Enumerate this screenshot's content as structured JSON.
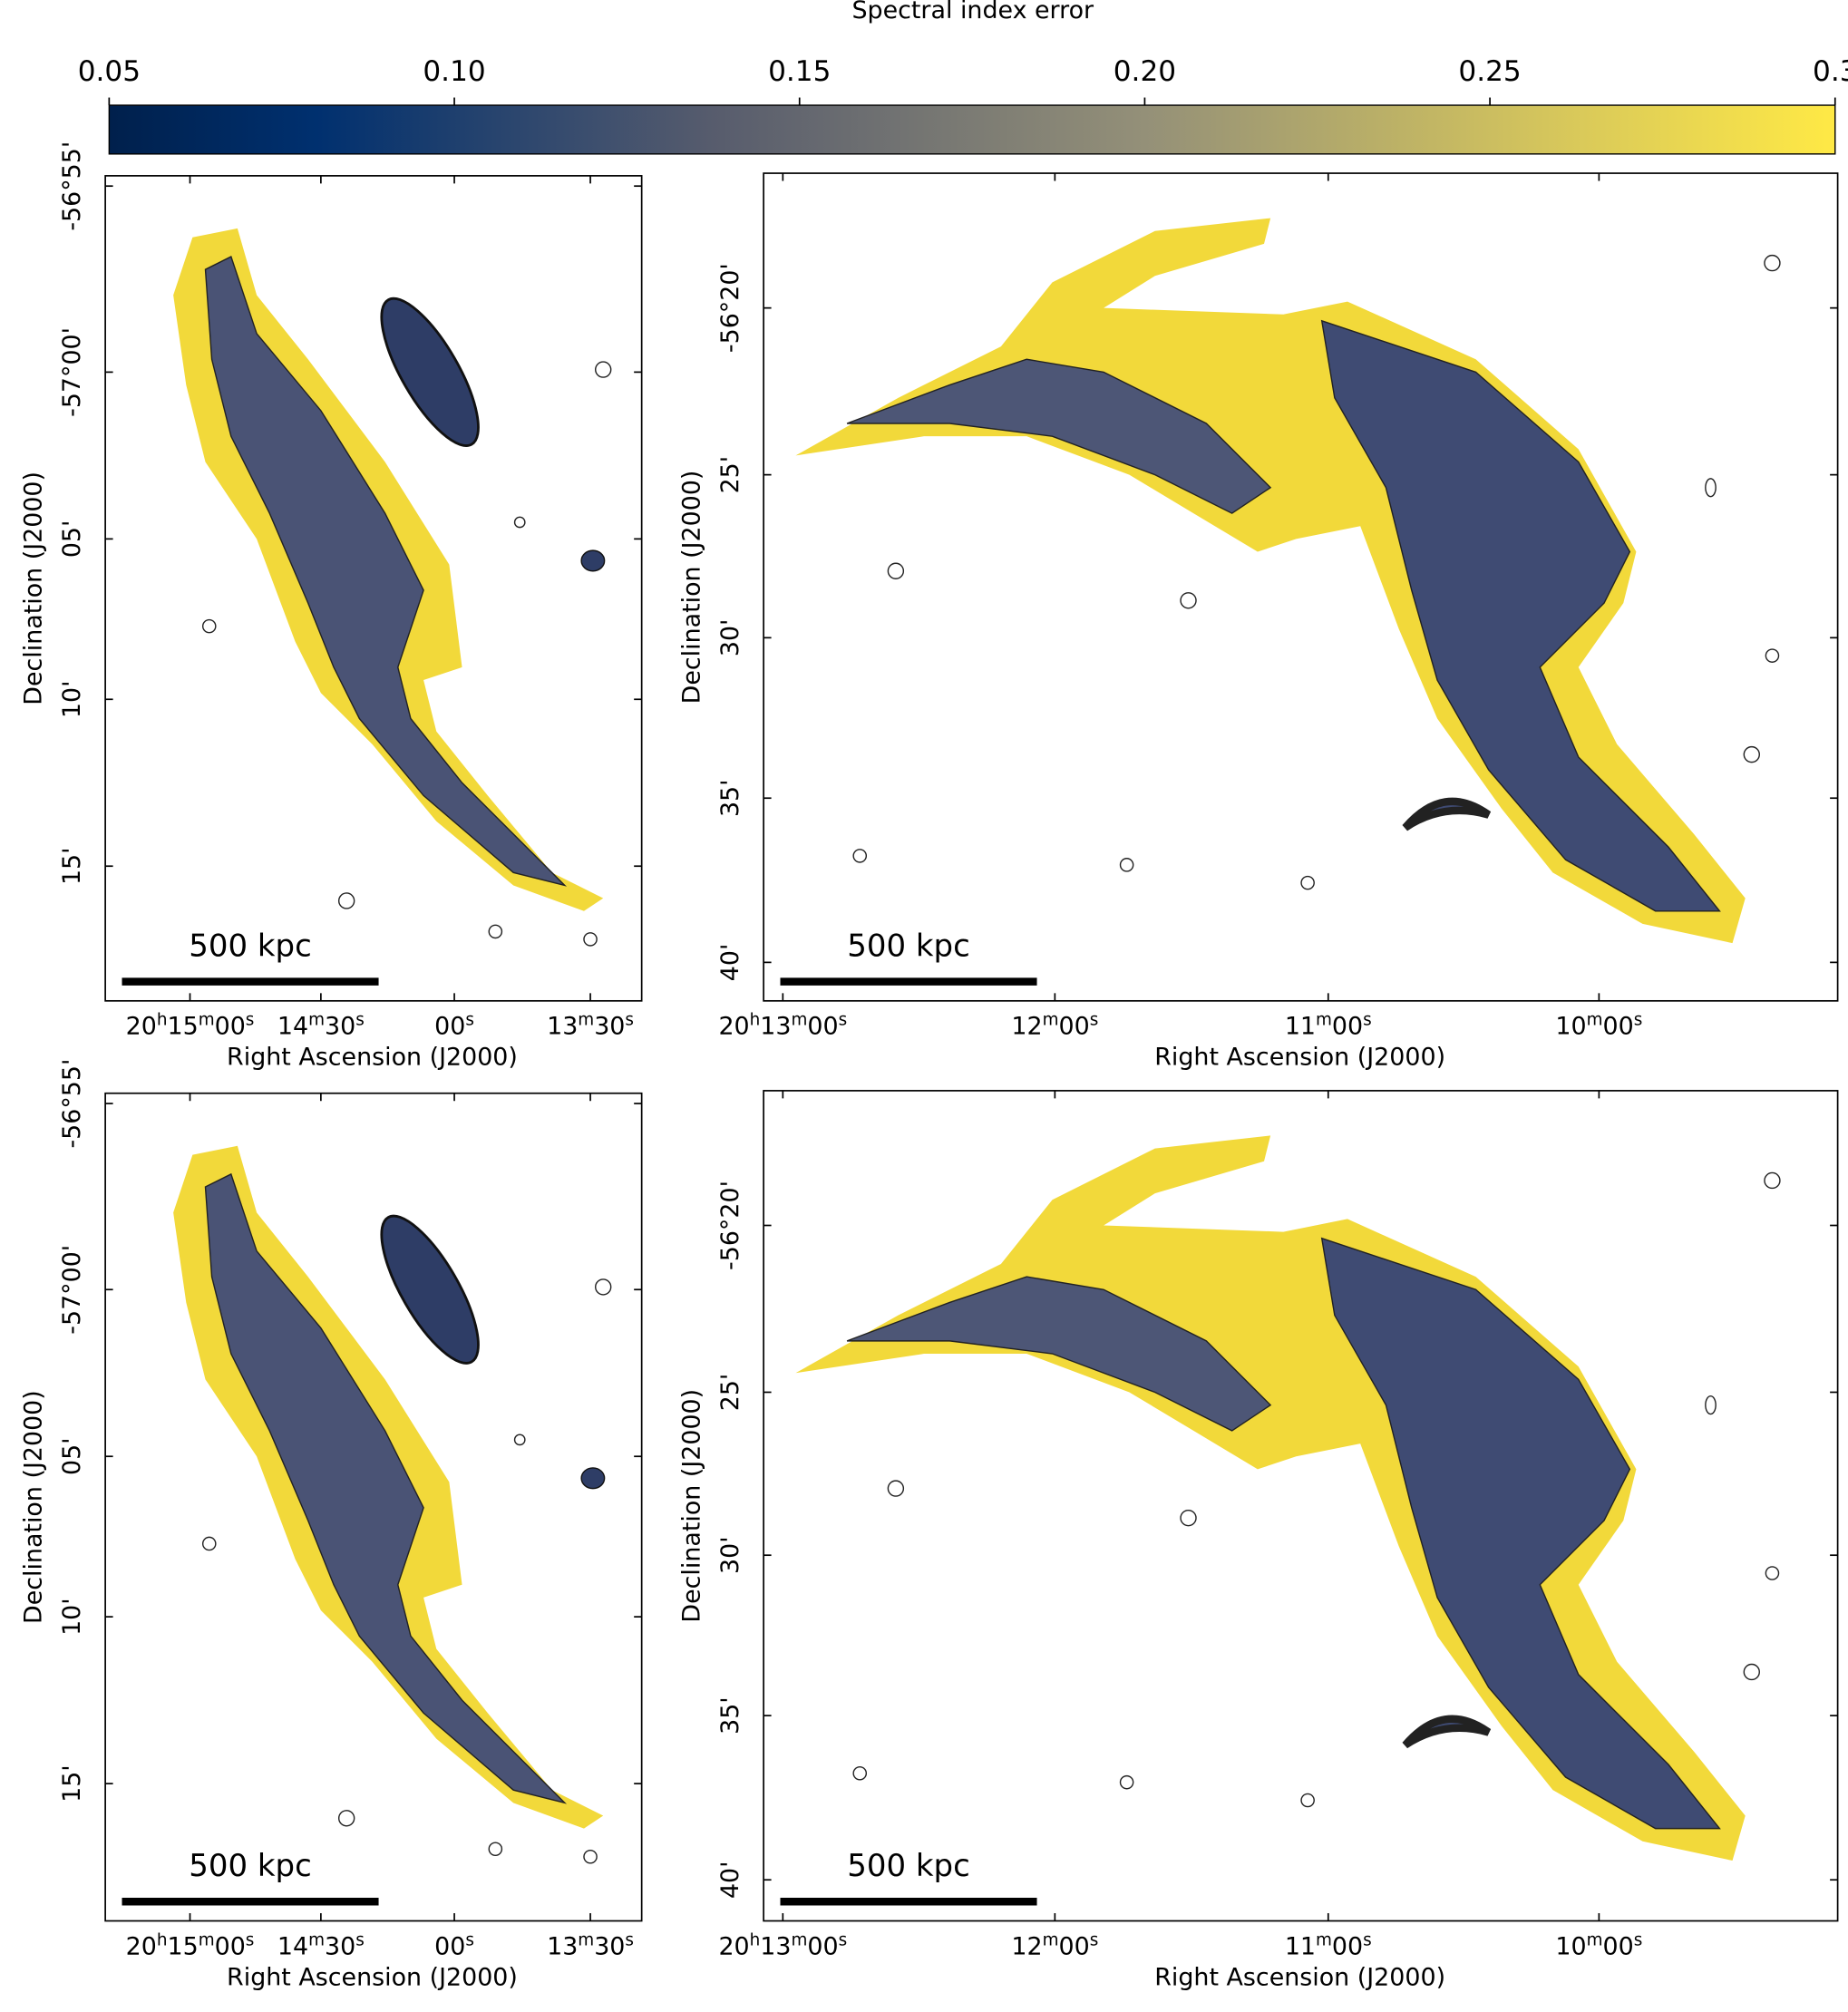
{
  "colorbar": {
    "title": "Spectral index error",
    "lim": [
      0.05,
      0.3
    ],
    "ticks": [
      0.05,
      {
        "value": 0.1,
        "label": "0.10"
      },
      {
        "value": 0.15,
        "label": "0.15"
      },
      {
        "value": 0.2,
        "label": "0.20"
      },
      {
        "value": 0.25,
        "label": "0.25"
      },
      0.3
    ]
  },
  "panels": [
    {
      "ylabel": "Declination (J2000)",
      "xlabel": "Right Ascension (J2000)",
      "scalebar": "500 kpc",
      "dec_ticks": [
        "-56°55'",
        "-57°00'",
        "05'",
        "10'",
        "15'"
      ],
      "ra_ticks": [
        [
          "20",
          "h",
          "15",
          "m",
          "00",
          "s"
        ],
        [
          "14",
          "m",
          "30",
          "s"
        ],
        [
          "00",
          "s"
        ],
        [
          "13",
          "m",
          "30",
          "s"
        ]
      ]
    },
    {
      "ylabel": "Declination (J2000)",
      "xlabel": "Right Ascension (J2000)",
      "scalebar": "500 kpc",
      "dec_ticks": [
        "-56°20'",
        "25'",
        "30'",
        "35'",
        "40'"
      ],
      "ra_ticks": [
        [
          "20",
          "h",
          "13",
          "m",
          "00",
          "s"
        ],
        [
          "12",
          "m",
          "00",
          "s"
        ],
        [
          "11",
          "m",
          "00",
          "s"
        ],
        [
          "10",
          "m",
          "00",
          "s"
        ]
      ]
    },
    {
      "ylabel": "Declination (J2000)",
      "xlabel": "Right Ascension (J2000)",
      "scalebar": "500 kpc",
      "dec_ticks": [
        "-56°55'",
        "-57°00'",
        "05'",
        "10'",
        "15'"
      ],
      "ra_ticks": [
        [
          "20",
          "h",
          "15",
          "m",
          "00",
          "s"
        ],
        [
          "14",
          "m",
          "30",
          "s"
        ],
        [
          "00",
          "s"
        ],
        [
          "13",
          "m",
          "30",
          "s"
        ]
      ]
    },
    {
      "ylabel": "Declination (J2000)",
      "xlabel": "Right Ascension (J2000)",
      "scalebar": "500 kpc",
      "dec_ticks": [
        "-56°20'",
        "25'",
        "30'",
        "35'",
        "40'"
      ],
      "ra_ticks": [
        [
          "20",
          "h",
          "13",
          "m",
          "00",
          "s"
        ],
        [
          "12",
          "m",
          "00",
          "s"
        ],
        [
          "11",
          "m",
          "00",
          "s"
        ],
        [
          "10",
          "m",
          "00",
          "s"
        ]
      ]
    }
  ]
}
